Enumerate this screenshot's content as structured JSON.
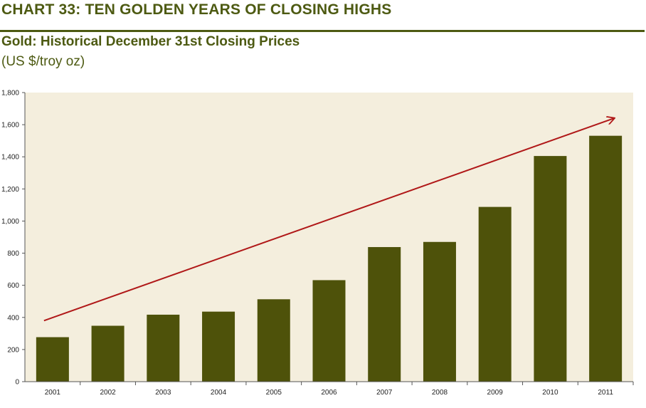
{
  "header": {
    "title": "CHART 33: TEN GOLDEN YEARS OF CLOSING HIGHS",
    "subtitle": "Gold: Historical December 31st Closing Prices",
    "units": "(US $/troy oz)"
  },
  "colors": {
    "brand": "#4d5a12",
    "bar": "#4e520a",
    "plot_background": "#f4eedd",
    "trend_arrow": "#b01818"
  },
  "chart_data": {
    "type": "bar",
    "title": "",
    "xlabel": "",
    "ylabel": "",
    "categories": [
      "2001",
      "2002",
      "2003",
      "2004",
      "2005",
      "2006",
      "2007",
      "2008",
      "2009",
      "2010",
      "2011"
    ],
    "values": [
      277,
      348,
      417,
      436,
      513,
      632,
      838,
      870,
      1088,
      1405,
      1531
    ],
    "ylim": [
      0,
      1800
    ],
    "yticks": [
      0,
      200,
      400,
      600,
      800,
      "1,000",
      "1,200",
      "1,400",
      "1,600",
      "1,800"
    ],
    "grid": false,
    "legend": "none",
    "annotations": [
      {
        "type": "trend-arrow",
        "from_category": "2001",
        "from_value": 380,
        "to_category": "2011",
        "to_value": 1640
      }
    ]
  }
}
